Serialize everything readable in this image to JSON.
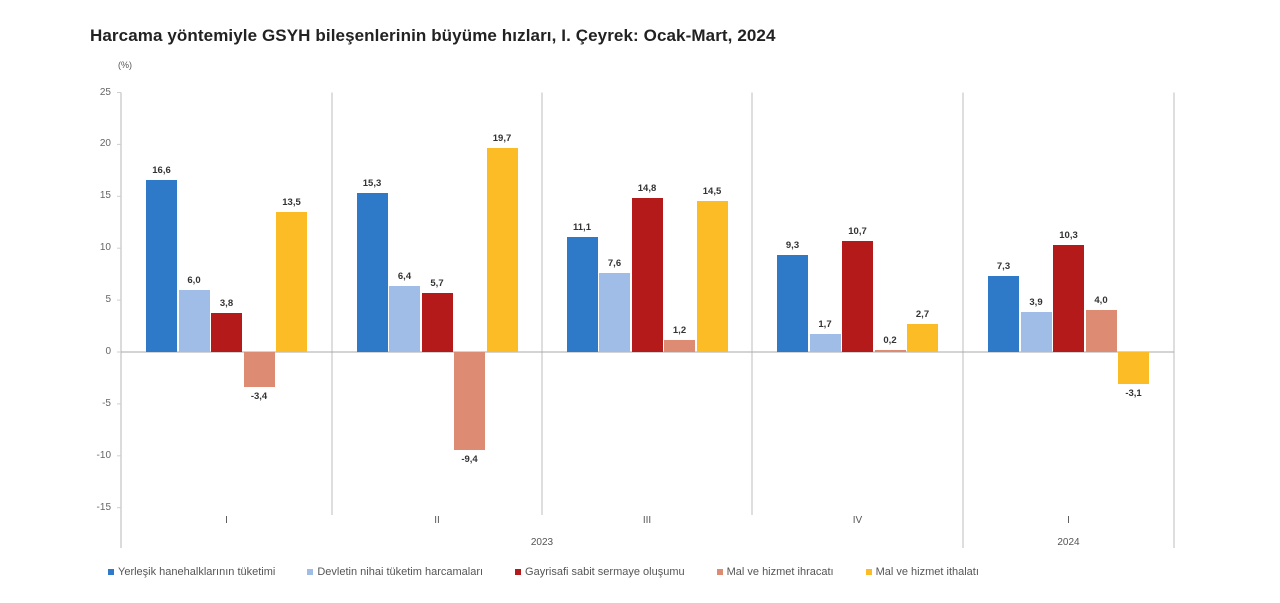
{
  "title": "Harcama yöntemiyle GSYH bileşenlerinin büyüme hızları, I. Çeyrek: Ocak-Mart, 2024",
  "unit_label": "(%)",
  "chart_data": {
    "type": "bar",
    "title": "Harcama yöntemiyle GSYH bileşenlerinin büyüme hızları, I. Çeyrek: Ocak-Mart, 2024",
    "xlabel": "",
    "ylabel": "(%)",
    "ylim": [
      -15,
      25
    ],
    "yticks": [
      25,
      20,
      15,
      10,
      5,
      0,
      -5,
      -10,
      -15
    ],
    "categories": [
      "I",
      "II",
      "III",
      "IV",
      "I"
    ],
    "category_years": [
      {
        "label": "2023",
        "span": [
          "I",
          "II",
          "III",
          "IV"
        ]
      },
      {
        "label": "2024",
        "span": [
          "I"
        ]
      }
    ],
    "series": [
      {
        "name": "Yerleşik hanehalklarının tüketimi",
        "color": "#2e7ac8",
        "values": [
          16.6,
          15.3,
          11.1,
          9.3,
          7.3
        ]
      },
      {
        "name": "Devletin nihai tüketim harcamaları",
        "color": "#9fbde6",
        "values": [
          6.0,
          6.4,
          7.6,
          1.7,
          3.9
        ]
      },
      {
        "name": "Gayrisafi sabit sermaye oluşumu",
        "color": "#b51a1a",
        "values": [
          3.8,
          5.7,
          14.8,
          10.7,
          10.3
        ]
      },
      {
        "name": "Mal ve hizmet ihracatı",
        "color": "#de8b74",
        "values": [
          -3.4,
          -9.4,
          1.2,
          0.2,
          4.0
        ]
      },
      {
        "name": "Mal ve hizmet ithalatı",
        "color": "#fbbc26",
        "values": [
          13.5,
          19.7,
          14.5,
          2.7,
          -3.1
        ]
      }
    ],
    "value_labels": [
      [
        "16,6",
        "6,0",
        "3,8",
        "-3,4",
        "13,5"
      ],
      [
        "15,3",
        "6,4",
        "5,7",
        "-9,4",
        "19,7"
      ],
      [
        "11,1",
        "7,6",
        "14,8",
        "1,2",
        "14,5"
      ],
      [
        "9,3",
        "1,7",
        "10,7",
        "0,2",
        "2,7"
      ],
      [
        "7,3",
        "3,9",
        "10,3",
        "4,0",
        "-3,1"
      ]
    ],
    "grid": false,
    "legend_position": "bottom"
  },
  "legend": [
    {
      "label": "Yerleşik hanehalklarının tüketimi",
      "color": "#2e7ac8"
    },
    {
      "label": "Devletin nihai tüketim harcamaları",
      "color": "#9fbde6"
    },
    {
      "label": "Gayrisafi sabit sermaye oluşumu",
      "color": "#b51a1a"
    },
    {
      "label": "Mal ve hizmet ihracatı",
      "color": "#de8b74"
    },
    {
      "label": "Mal ve hizmet ithalatı",
      "color": "#fbbc26"
    }
  ],
  "year_labels": [
    "2023",
    "2024"
  ]
}
